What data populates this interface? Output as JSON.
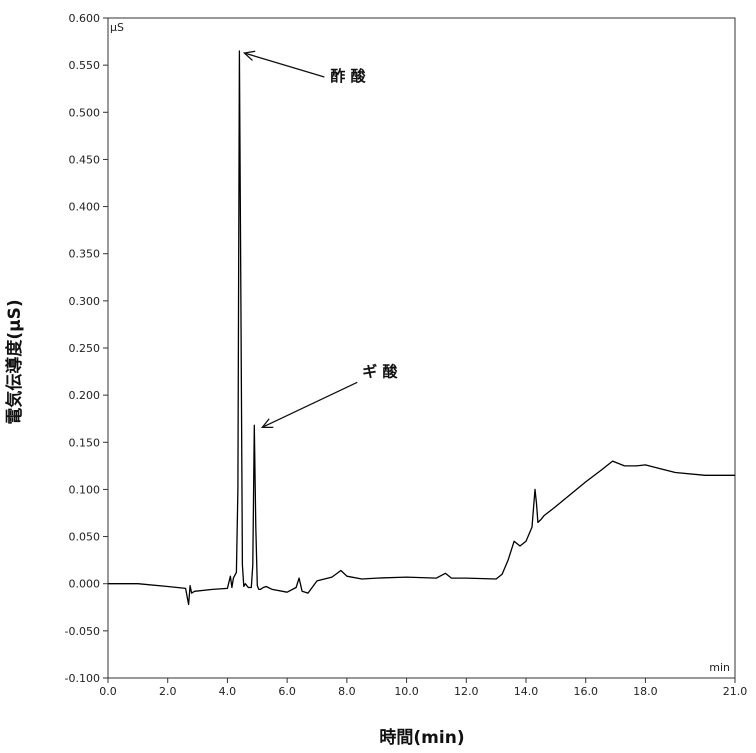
{
  "chart_data": {
    "type": "line",
    "xlabel": "時間(min)",
    "ylabel": "電気伝導度(μS)",
    "y_unit": "μS",
    "x_unit": "min",
    "xlim": [
      0,
      21.0
    ],
    "ylim": [
      -0.1,
      0.6
    ],
    "x_ticks": [
      0,
      2,
      4,
      6,
      8,
      10,
      12,
      14,
      16,
      18,
      21
    ],
    "x_tick_labels": [
      "0.0",
      "2.0",
      "4.0",
      "6.0",
      "8.0",
      "10.0",
      "12.0",
      "14.0",
      "16.0",
      "18.0",
      "21.0"
    ],
    "y_ticks": [
      -0.1,
      -0.05,
      0,
      0.05,
      0.1,
      0.15,
      0.2,
      0.25,
      0.3,
      0.35,
      0.4,
      0.45,
      0.5,
      0.55,
      0.6
    ],
    "y_tick_labels": [
      "-0.100",
      "-0.050",
      "0.000",
      "0.050",
      "0.100",
      "0.150",
      "0.200",
      "0.250",
      "0.300",
      "0.350",
      "0.400",
      "0.450",
      "0.500",
      "0.550",
      "0.600"
    ],
    "grid": false,
    "annotations": [
      {
        "text": "酢 酸",
        "x": 4.4,
        "y": 0.565
      },
      {
        "text": "ギ 酸",
        "x": 5.0,
        "y": 0.168
      }
    ],
    "series": [
      {
        "color": "#000000",
        "x": [
          0,
          1.0,
          2.0,
          2.6,
          2.7,
          2.75,
          2.8,
          2.9,
          3.5,
          4.0,
          4.1,
          4.15,
          4.2,
          4.3,
          4.35,
          4.4,
          4.45,
          4.5,
          4.55,
          4.6,
          4.7,
          4.8,
          4.85,
          4.9,
          4.95,
          5.0,
          5.05,
          5.1,
          5.2,
          5.3,
          5.5,
          6.0,
          6.3,
          6.4,
          6.5,
          6.7,
          7.0,
          7.5,
          7.8,
          8.0,
          8.5,
          9.0,
          10.0,
          11.0,
          11.3,
          11.5,
          12.0,
          13.0,
          13.2,
          13.4,
          13.6,
          13.8,
          14.0,
          14.2,
          14.3,
          14.35,
          14.4,
          14.5,
          14.6,
          15.0,
          16.0,
          16.5,
          16.9,
          17.3,
          17.7,
          18.0,
          18.5,
          19.0,
          20.0,
          21.0
        ],
        "y": [
          0.0,
          0.0,
          -0.003,
          -0.005,
          -0.022,
          -0.002,
          -0.01,
          -0.008,
          -0.006,
          -0.005,
          0.008,
          -0.004,
          0.006,
          0.012,
          0.1,
          0.565,
          0.3,
          0.02,
          -0.003,
          0.0,
          -0.004,
          -0.004,
          0.02,
          0.168,
          0.06,
          -0.002,
          -0.006,
          -0.006,
          -0.004,
          -0.003,
          -0.006,
          -0.009,
          -0.004,
          0.006,
          -0.008,
          -0.01,
          0.003,
          0.007,
          0.014,
          0.008,
          0.005,
          0.006,
          0.007,
          0.006,
          0.011,
          0.006,
          0.006,
          0.005,
          0.01,
          0.025,
          0.045,
          0.04,
          0.045,
          0.06,
          0.1,
          0.085,
          0.065,
          0.068,
          0.072,
          0.082,
          0.108,
          0.12,
          0.13,
          0.125,
          0.125,
          0.126,
          0.122,
          0.118,
          0.115,
          0.115
        ]
      }
    ]
  }
}
